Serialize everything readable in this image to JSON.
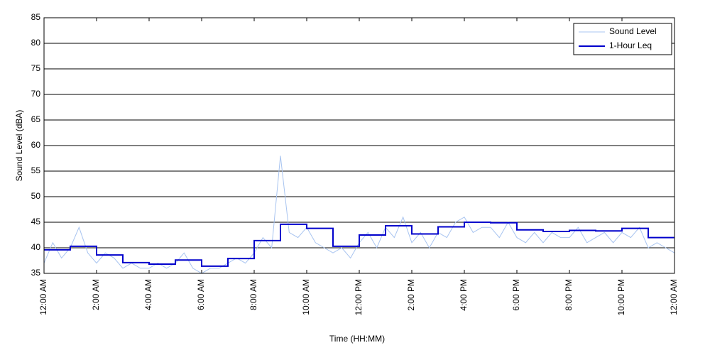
{
  "chart_data": {
    "type": "line",
    "xlabel": "Time (HH:MM)",
    "ylabel": "Sound Level (dBA)",
    "xlim": [
      0,
      1440
    ],
    "ylim": [
      35,
      85
    ],
    "xticks": [
      {
        "value": 0,
        "label": "12:00 AM"
      },
      {
        "value": 120,
        "label": "2:00 AM"
      },
      {
        "value": 240,
        "label": "4:00 AM"
      },
      {
        "value": 360,
        "label": "6:00 AM"
      },
      {
        "value": 480,
        "label": "8:00 AM"
      },
      {
        "value": 600,
        "label": "10:00 AM"
      },
      {
        "value": 720,
        "label": "12:00 PM"
      },
      {
        "value": 840,
        "label": "2:00 PM"
      },
      {
        "value": 960,
        "label": "4:00 PM"
      },
      {
        "value": 1080,
        "label": "6:00 PM"
      },
      {
        "value": 1200,
        "label": "8:00 PM"
      },
      {
        "value": 1320,
        "label": "10:00 PM"
      },
      {
        "value": 1440,
        "label": "12:00 AM"
      }
    ],
    "yticks": [
      35,
      40,
      45,
      50,
      55,
      60,
      65,
      70,
      75,
      80,
      85
    ],
    "grid": true,
    "legend": "upper right",
    "series": [
      {
        "name": "Sound Level",
        "color": "#a8c4f0",
        "width": 1,
        "x": [
          0,
          20,
          40,
          60,
          80,
          100,
          120,
          140,
          160,
          180,
          200,
          220,
          240,
          260,
          280,
          300,
          320,
          340,
          360,
          380,
          400,
          420,
          440,
          460,
          480,
          500,
          520,
          540,
          560,
          580,
          600,
          620,
          640,
          660,
          680,
          700,
          720,
          740,
          760,
          780,
          800,
          820,
          840,
          860,
          880,
          900,
          920,
          940,
          960,
          980,
          1000,
          1020,
          1040,
          1060,
          1080,
          1100,
          1120,
          1140,
          1160,
          1180,
          1200,
          1220,
          1240,
          1260,
          1280,
          1300,
          1320,
          1340,
          1360,
          1380,
          1400,
          1420,
          1440
        ],
        "values": [
          37,
          41,
          38,
          40,
          44,
          39,
          37,
          39,
          38,
          36,
          37,
          36,
          36,
          37,
          36,
          37,
          39,
          36,
          35,
          36,
          36,
          37,
          38,
          37,
          39,
          42,
          40,
          58,
          43,
          42,
          44,
          41,
          40,
          39,
          40,
          38,
          41,
          43,
          40,
          44,
          42,
          46,
          41,
          43,
          40,
          43,
          42,
          45,
          46,
          43,
          44,
          44,
          42,
          45,
          42,
          41,
          43,
          41,
          43,
          42,
          42,
          44,
          41,
          42,
          43,
          41,
          43,
          42,
          44,
          40,
          41,
          40,
          39
        ]
      },
      {
        "name": "1-Hour Leq",
        "color": "#0000cc",
        "width": 2,
        "step": "post",
        "x": [
          0,
          60,
          120,
          180,
          240,
          300,
          360,
          420,
          480,
          540,
          600,
          660,
          720,
          780,
          840,
          900,
          960,
          1020,
          1080,
          1140,
          1200,
          1260,
          1320,
          1380
        ],
        "values": [
          39.6,
          40.3,
          38.6,
          37.1,
          36.8,
          37.6,
          36.4,
          37.9,
          41.4,
          44.6,
          43.8,
          40.3,
          42.5,
          44.3,
          42.7,
          44.1,
          45.0,
          44.9,
          43.5,
          43.2,
          43.4,
          43.3,
          43.8,
          42.0
        ]
      }
    ]
  }
}
